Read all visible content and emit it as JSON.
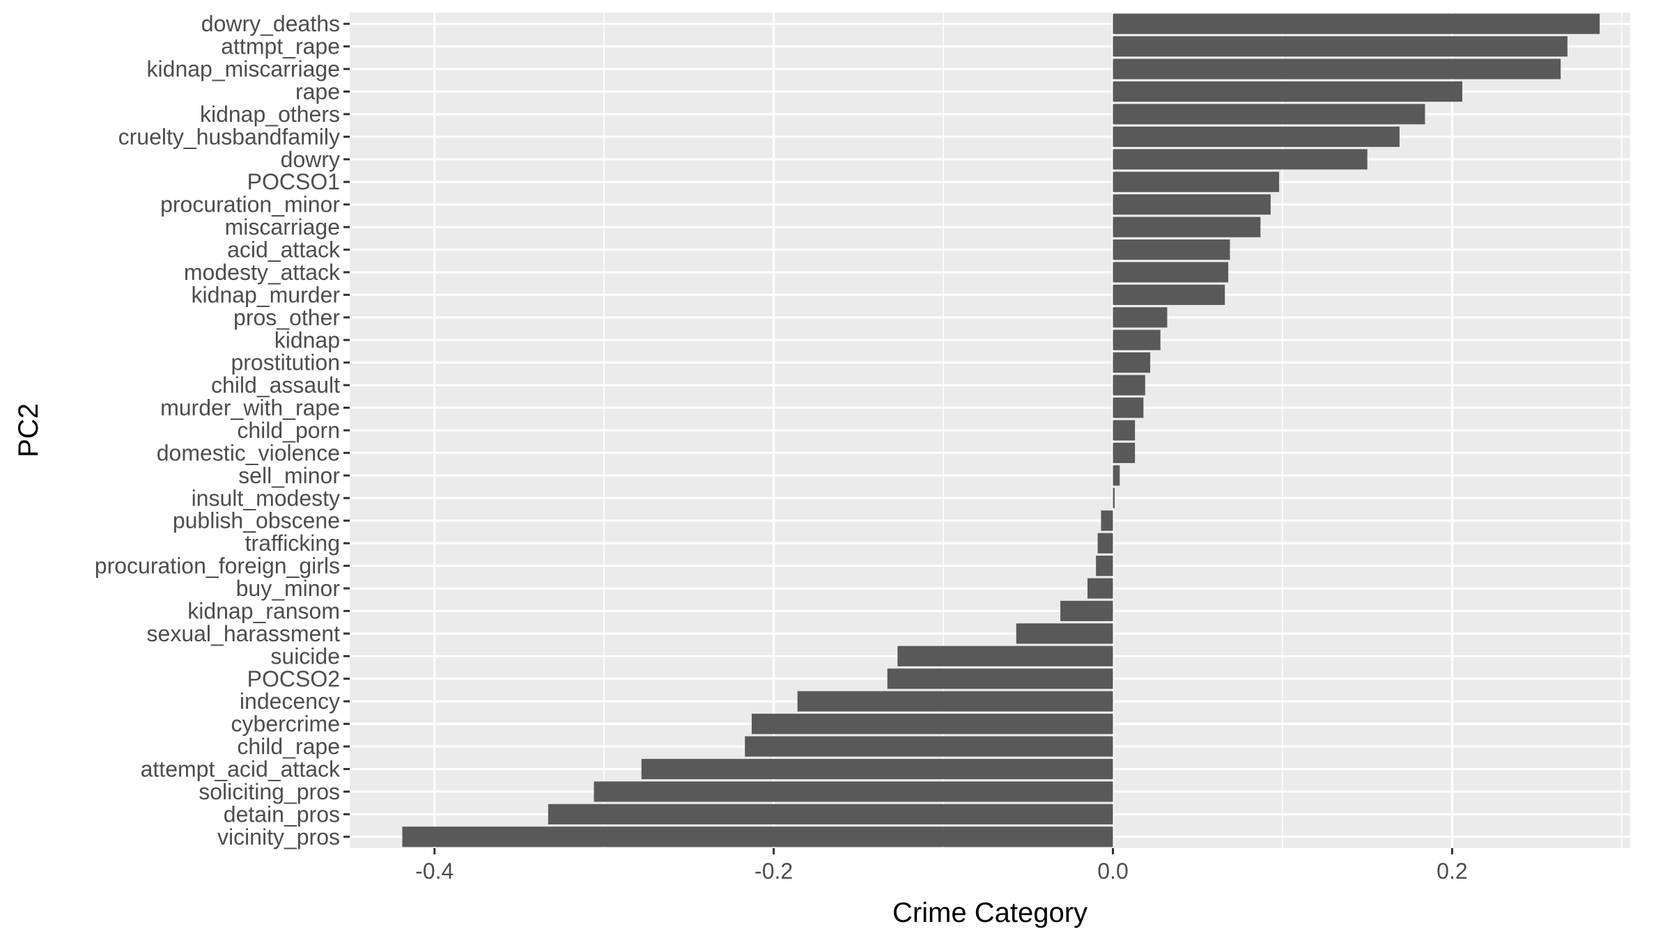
{
  "chart_data": {
    "type": "bar",
    "orientation": "horizontal",
    "xlabel": "Crime Category",
    "ylabel": "PC2",
    "xlim": [
      -0.45,
      0.305
    ],
    "x_ticks": [
      -0.4,
      -0.2,
      0.0,
      0.2
    ],
    "x_tick_labels": [
      "-0.4",
      "-0.2",
      "0.0",
      "0.2"
    ],
    "grid": true,
    "legend": "none",
    "colors": {
      "panel": "#ebebeb",
      "bar": "#595959",
      "grid": "#ffffff",
      "text": "#4d4d4d",
      "title": "#000000"
    },
    "categories": [
      "dowry_deaths",
      "attmpt_rape",
      "kidnap_miscarriage",
      "rape",
      "kidnap_others",
      "cruelty_husbandfamily",
      "dowry",
      "POCSO1",
      "procuration_minor",
      "miscarriage",
      "acid_attack",
      "modesty_attack",
      "kidnap_murder",
      "pros_other",
      "kidnap",
      "prostitution",
      "child_assault",
      "murder_with_rape",
      "child_porn",
      "domestic_violence",
      "sell_minor",
      "insult_modesty",
      "publish_obscene",
      "trafficking",
      "procuration_foreign_girls",
      "buy_minor",
      "kidnap_ransom",
      "sexual_harassment",
      "suicide",
      "POCSO2",
      "indecency",
      "cybercrime",
      "child_rape",
      "attempt_acid_attack",
      "soliciting_pros",
      "detain_pros",
      "vicinity_pros"
    ],
    "values": [
      0.287,
      0.268,
      0.264,
      0.206,
      0.184,
      0.169,
      0.15,
      0.098,
      0.093,
      0.087,
      0.069,
      0.068,
      0.066,
      0.032,
      0.028,
      0.022,
      0.019,
      0.018,
      0.013,
      0.013,
      0.004,
      0.001,
      -0.007,
      -0.009,
      -0.01,
      -0.015,
      -0.031,
      -0.057,
      -0.127,
      -0.133,
      -0.186,
      -0.213,
      -0.217,
      -0.278,
      -0.306,
      -0.333,
      -0.419
    ]
  }
}
